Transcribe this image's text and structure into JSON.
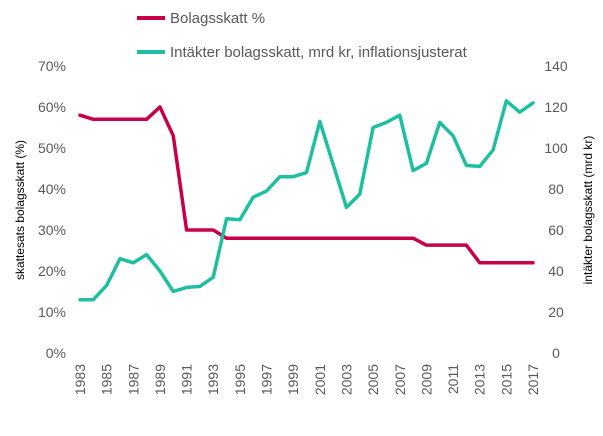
{
  "chart_data": {
    "type": "line",
    "x": [
      1983,
      1984,
      1985,
      1986,
      1987,
      1988,
      1989,
      1990,
      1991,
      1992,
      1993,
      1994,
      1995,
      1996,
      1997,
      1998,
      1999,
      2000,
      2001,
      2002,
      2003,
      2004,
      2005,
      2006,
      2007,
      2008,
      2009,
      2010,
      2011,
      2012,
      2013,
      2014,
      2015,
      2016,
      2017
    ],
    "x_tick_labels": [
      "1983",
      "1985",
      "1987",
      "1989",
      "1991",
      "1993",
      "1995",
      "1997",
      "1999",
      "2001",
      "2003",
      "2005",
      "2007",
      "2009",
      "2011",
      "2013",
      "2015",
      "2017"
    ],
    "series": [
      {
        "name": "Bolagsskatt %",
        "axis": "left",
        "color": "#C8004B",
        "values": [
          58,
          57,
          57,
          57,
          57,
          57,
          60,
          53,
          30,
          30,
          30,
          28,
          28,
          28,
          28,
          28,
          28,
          28,
          28,
          28,
          28,
          28,
          28,
          28,
          28,
          28,
          26.3,
          26.3,
          26.3,
          26.3,
          22,
          22,
          22,
          22,
          22
        ]
      },
      {
        "name": "Intäkter bolagsskatt, mrd kr, inflationsjusterat",
        "axis": "right",
        "color": "#1EBFA0",
        "values": [
          26,
          26,
          33,
          46,
          44,
          48,
          40,
          30,
          32,
          32.5,
          37,
          65.5,
          65,
          76,
          79,
          86,
          86,
          88,
          113,
          92,
          71,
          77.5,
          110,
          112.5,
          116,
          89,
          92.5,
          112.5,
          106,
          91.5,
          91,
          99,
          123,
          117.5,
          122
        ]
      }
    ],
    "y_left": {
      "label": "skattesats bolagsskatt (%)",
      "ylim": [
        0,
        70
      ],
      "tick_labels": [
        "0%",
        "10%",
        "20%",
        "30%",
        "40%",
        "50%",
        "60%",
        "70%"
      ]
    },
    "y_right": {
      "label": "intäkter bolagsskatt (mrd kr)",
      "ylim": [
        0,
        140
      ],
      "tick_labels": [
        "0",
        "20",
        "40",
        "60",
        "80",
        "100",
        "120",
        "140"
      ]
    },
    "grid": false,
    "legend_position": "top"
  }
}
